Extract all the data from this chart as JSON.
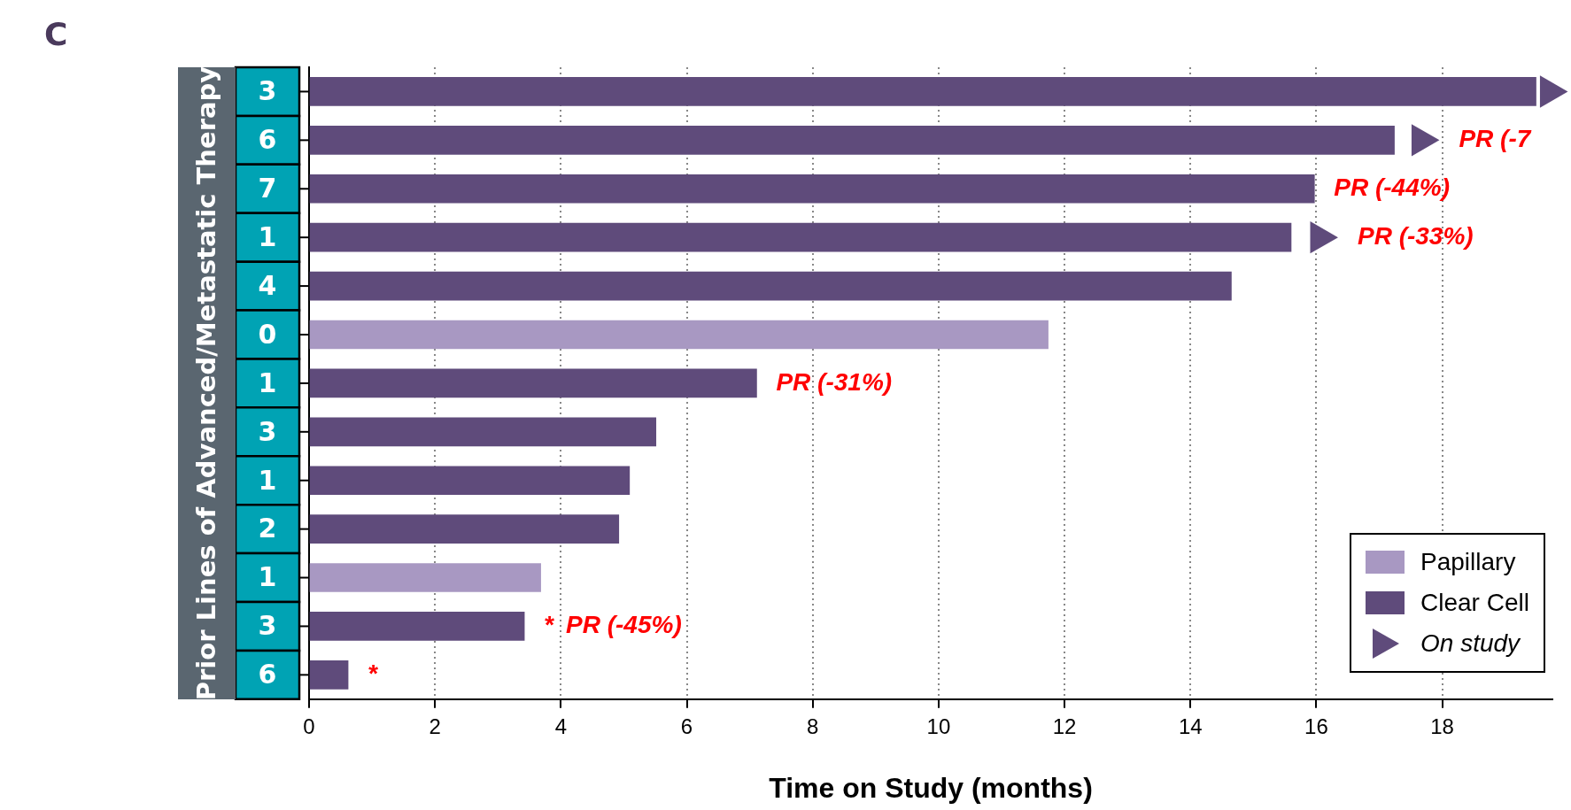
{
  "chart_data": {
    "type": "bar",
    "orientation": "horizontal",
    "stacked": true,
    "xlabel": "Time on Study (months)",
    "ylabel": "Prior Lines of Advanced/Metastatic Therapy",
    "annotations": [
      "C",
      {
        "text": "PR (-7",
        "x": 17.24,
        "y": "6"
      },
      {
        "text": "PR (-44%)",
        "x": 15.97,
        "y": "7"
      },
      {
        "text": "PR (-33%)",
        "x": 15.6,
        "y": "1"
      },
      {
        "text": "PR (-31%)",
        "x": 7.11
      },
      {
        "text": "*",
        "x": 3.42
      },
      {
        "text": "PR (-45%)",
        "x": 3.42
      },
      {
        "text": "*",
        "x": 0.62
      }
    ],
    "categories": [
      "3",
      "6",
      "7",
      "1",
      "4",
      "0",
      "1",
      "3",
      "1",
      "2",
      "1",
      "3",
      "6"
    ],
    "series": [
      {
        "name": "Papillary",
        "color": "#a898c2",
        "values": [
          null,
          null,
          null,
          null,
          null,
          11.74,
          null,
          null,
          null,
          null,
          3.68,
          null,
          null
        ]
      },
      {
        "name": "Clear Cell",
        "color": "#5f4b7b",
        "values": [
          19.49,
          17.24,
          15.97,
          15.6,
          14.65,
          null,
          7.11,
          5.51,
          5.09,
          4.92,
          null,
          3.42,
          0.62
        ]
      },
      {
        "name": "On study",
        "type": "scatter",
        "color": "#5f4b7b",
        "marker": "triangle",
        "values": [
          19.7,
          17.66,
          null,
          16.05,
          null,
          null,
          null,
          null,
          null,
          null,
          null,
          null,
          null
        ]
      }
    ],
    "xlim": [
      0,
      19.75
    ],
    "xticks": [
      0,
      2,
      4,
      6,
      8,
      10,
      12,
      14,
      16,
      18
    ],
    "grid": "x",
    "legend": "bottom right"
  }
}
